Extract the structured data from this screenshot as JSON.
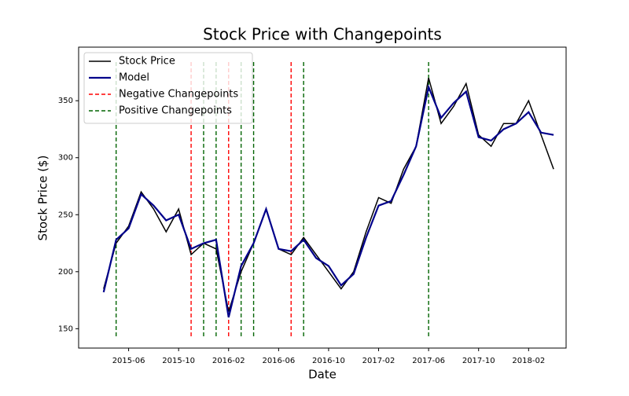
{
  "chart_data": {
    "type": "line",
    "title": "Stock Price with Changepoints",
    "xlabel": "Date",
    "ylabel": "Stock Price ($)",
    "x": [
      "2015-04",
      "2015-05",
      "2015-06",
      "2015-07",
      "2015-08",
      "2015-09",
      "2015-10",
      "2015-11",
      "2015-12",
      "2016-01",
      "2016-02",
      "2016-03",
      "2016-04",
      "2016-05",
      "2016-06",
      "2016-07",
      "2016-08",
      "2016-09",
      "2016-10",
      "2016-11",
      "2016-12",
      "2017-01",
      "2017-02",
      "2017-03",
      "2017-04",
      "2017-05",
      "2017-06",
      "2017-07",
      "2017-08",
      "2017-09",
      "2017-10",
      "2017-11",
      "2017-12",
      "2018-01",
      "2018-02",
      "2018-03",
      "2018-04"
    ],
    "series": [
      {
        "name": "Stock Price",
        "color": "#000000",
        "values": [
          185,
          225,
          240,
          270,
          255,
          235,
          255,
          215,
          225,
          220,
          165,
          200,
          225,
          255,
          220,
          215,
          230,
          215,
          200,
          185,
          200,
          235,
          265,
          260,
          290,
          310,
          370,
          330,
          345,
          365,
          320,
          310,
          330,
          330,
          350,
          320,
          290
        ]
      },
      {
        "name": "Model",
        "color": "#00008b",
        "values": [
          182,
          228,
          238,
          268,
          258,
          245,
          250,
          220,
          225,
          228,
          160,
          205,
          225,
          255,
          220,
          218,
          228,
          212,
          205,
          188,
          198,
          230,
          258,
          262,
          285,
          310,
          362,
          335,
          348,
          358,
          318,
          315,
          325,
          330,
          340,
          322,
          320
        ]
      }
    ],
    "changepoints": [
      {
        "name": "Negative Changepoints",
        "color": "#ff0000",
        "x": [
          "2015-11",
          "2016-02",
          "2016-07"
        ]
      },
      {
        "name": "Positive Changepoints",
        "color": "#006400",
        "x": [
          "2015-05",
          "2015-12",
          "2016-01",
          "2016-03",
          "2016-04",
          "2016-08",
          "2017-06"
        ]
      }
    ],
    "xlim": [
      "2015-02",
      "2018-05"
    ],
    "xticks": [
      "2015-06",
      "2015-10",
      "2016-02",
      "2016-06",
      "2016-10",
      "2017-02",
      "2017-06",
      "2017-10",
      "2018-02"
    ],
    "ylim": [
      133,
      397
    ],
    "yticks": [
      150,
      200,
      250,
      300,
      350
    ],
    "legend": "upper left"
  }
}
